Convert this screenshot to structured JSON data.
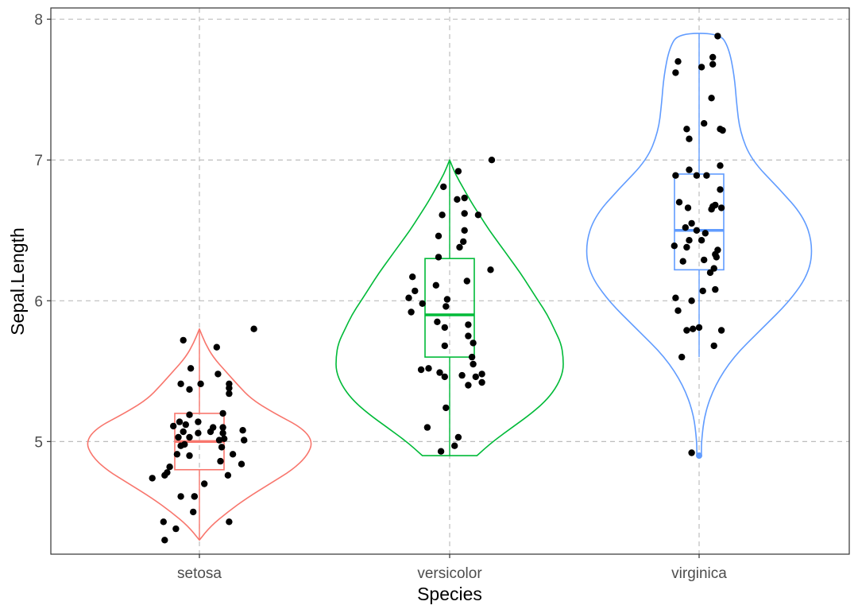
{
  "chart_data": {
    "type": "violin",
    "xlabel": "Species",
    "ylabel": "Sepal.Length",
    "categories": [
      "setosa",
      "versicolor",
      "virginica"
    ],
    "ylim": [
      4.2,
      8.08
    ],
    "yticks": [
      5,
      6,
      7,
      8
    ],
    "grid": true,
    "legend": "none",
    "colors": {
      "setosa": "#f8766d",
      "versicolor": "#00ba38",
      "virginica": "#619cff"
    },
    "series": [
      {
        "category": "setosa",
        "color": "#f8766d",
        "violin": {
          "y": [
            4.3,
            4.4,
            4.5,
            4.6,
            4.7,
            4.8,
            4.9,
            5.0,
            5.1,
            5.2,
            5.3,
            5.4,
            5.5,
            5.6,
            5.7,
            5.8
          ],
          "halfwidth": [
            0.0,
            0.1,
            0.25,
            0.42,
            0.62,
            0.82,
            0.95,
            1.0,
            0.9,
            0.66,
            0.46,
            0.34,
            0.23,
            0.12,
            0.05,
            0.0
          ]
        },
        "box": {
          "min": 4.3,
          "q1": 4.8,
          "median": 5.0,
          "q3": 5.2,
          "max": 5.8
        },
        "points": [
          [
            0.44,
            5.8
          ],
          [
            -0.13,
            5.72
          ],
          [
            -0.07,
            5.52
          ],
          [
            0.14,
            5.67
          ],
          [
            0.15,
            5.48
          ],
          [
            0.01,
            5.41
          ],
          [
            -0.15,
            5.41
          ],
          [
            0.24,
            5.41
          ],
          [
            0.24,
            5.38
          ],
          [
            -0.08,
            5.37
          ],
          [
            0.24,
            5.34
          ],
          [
            0.19,
            5.2
          ],
          [
            -0.08,
            5.19
          ],
          [
            -0.16,
            5.14
          ],
          [
            -0.01,
            5.14
          ],
          [
            -0.11,
            5.12
          ],
          [
            -0.21,
            5.11
          ],
          [
            0.11,
            5.1
          ],
          [
            0.19,
            5.1
          ],
          [
            0.35,
            5.08
          ],
          [
            -0.13,
            5.07
          ],
          [
            0.09,
            5.07
          ],
          [
            -0.01,
            5.06
          ],
          [
            0.19,
            5.06
          ],
          [
            -0.17,
            5.03
          ],
          [
            -0.08,
            5.03
          ],
          [
            0.2,
            5.02
          ],
          [
            0.16,
            5.01
          ],
          [
            0.36,
            5.01
          ],
          [
            -0.12,
            4.98
          ],
          [
            -0.15,
            4.97
          ],
          [
            0.18,
            4.96
          ],
          [
            0.27,
            4.91
          ],
          [
            -0.18,
            4.91
          ],
          [
            -0.08,
            4.9
          ],
          [
            0.17,
            4.86
          ],
          [
            0.34,
            4.84
          ],
          [
            -0.24,
            4.82
          ],
          [
            -0.26,
            4.78
          ],
          [
            -0.28,
            4.76
          ],
          [
            0.23,
            4.76
          ],
          [
            -0.38,
            4.74
          ],
          [
            0.04,
            4.7
          ],
          [
            -0.04,
            4.61
          ],
          [
            -0.04,
            4.61
          ],
          [
            -0.15,
            4.61
          ],
          [
            -0.05,
            4.5
          ],
          [
            -0.29,
            4.43
          ],
          [
            0.24,
            4.43
          ],
          [
            -0.19,
            4.38
          ],
          [
            -0.28,
            4.3
          ]
        ]
      },
      {
        "category": "versicolor",
        "color": "#00ba38",
        "violin": {
          "y": [
            4.9,
            5.0,
            5.1,
            5.2,
            5.3,
            5.4,
            5.5,
            5.6,
            5.7,
            5.8,
            5.9,
            6.0,
            6.1,
            6.2,
            6.3,
            6.4,
            6.5,
            6.6,
            6.7,
            6.8,
            6.9,
            7.0
          ],
          "halfwidth": [
            0.24,
            0.38,
            0.55,
            0.72,
            0.86,
            0.95,
            1.0,
            1.0,
            0.98,
            0.92,
            0.86,
            0.78,
            0.7,
            0.62,
            0.53,
            0.44,
            0.35,
            0.27,
            0.19,
            0.12,
            0.05,
            0.0
          ]
        },
        "box": {
          "min": 4.9,
          "q1": 5.6,
          "median": 5.9,
          "q3": 6.3,
          "max": 7.0
        },
        "points": [
          [
            0.34,
            7.0
          ],
          [
            0.07,
            6.92
          ],
          [
            -0.05,
            6.81
          ],
          [
            0.12,
            6.73
          ],
          [
            0.06,
            6.72
          ],
          [
            0.12,
            6.62
          ],
          [
            0.23,
            6.61
          ],
          [
            -0.06,
            6.61
          ],
          [
            0.12,
            6.5
          ],
          [
            -0.09,
            6.46
          ],
          [
            0.11,
            6.42
          ],
          [
            0.08,
            6.38
          ],
          [
            -0.09,
            6.31
          ],
          [
            0.33,
            6.22
          ],
          [
            -0.3,
            6.17
          ],
          [
            0.14,
            6.14
          ],
          [
            -0.11,
            6.11
          ],
          [
            -0.28,
            6.07
          ],
          [
            -0.33,
            6.02
          ],
          [
            -0.02,
            6.01
          ],
          [
            -0.22,
            5.98
          ],
          [
            -0.03,
            5.96
          ],
          [
            -0.31,
            5.92
          ],
          [
            -0.1,
            5.85
          ],
          [
            0.15,
            5.83
          ],
          [
            -0.04,
            5.81
          ],
          [
            0.15,
            5.75
          ],
          [
            0.19,
            5.7
          ],
          [
            -0.04,
            5.68
          ],
          [
            0.18,
            5.6
          ],
          [
            0.19,
            5.55
          ],
          [
            -0.17,
            5.52
          ],
          [
            -0.23,
            5.51
          ],
          [
            -0.08,
            5.49
          ],
          [
            0.26,
            5.48
          ],
          [
            0.1,
            5.47
          ],
          [
            0.21,
            5.46
          ],
          [
            -0.04,
            5.46
          ],
          [
            0.26,
            5.42
          ],
          [
            0.15,
            5.4
          ],
          [
            -0.03,
            5.24
          ],
          [
            -0.18,
            5.1
          ],
          [
            0.07,
            5.03
          ],
          [
            0.04,
            4.97
          ],
          [
            -0.07,
            4.93
          ]
        ]
      },
      {
        "category": "virginica",
        "color": "#619cff",
        "violin": {
          "y": [
            4.9,
            5.0,
            5.2,
            5.4,
            5.6,
            5.8,
            6.0,
            6.2,
            6.4,
            6.6,
            6.8,
            7.0,
            7.2,
            7.4,
            7.6,
            7.8,
            7.9
          ],
          "halfwidth": [
            0.02,
            0.02,
            0.05,
            0.14,
            0.3,
            0.55,
            0.8,
            0.97,
            1.0,
            0.92,
            0.7,
            0.46,
            0.36,
            0.33,
            0.31,
            0.26,
            0.18
          ]
        },
        "box": {
          "min": 5.6,
          "q1": 6.22,
          "median": 6.5,
          "q3": 6.9,
          "max": 7.9,
          "outliers": [
            4.9
          ]
        },
        "points": [
          [
            0.15,
            7.88
          ],
          [
            -0.17,
            7.7
          ],
          [
            0.11,
            7.73
          ],
          [
            0.11,
            7.68
          ],
          [
            0.02,
            7.66
          ],
          [
            -0.19,
            7.62
          ],
          [
            0.1,
            7.44
          ],
          [
            0.04,
            7.26
          ],
          [
            -0.1,
            7.22
          ],
          [
            0.17,
            7.22
          ],
          [
            0.19,
            7.21
          ],
          [
            -0.08,
            7.15
          ],
          [
            0.17,
            6.96
          ],
          [
            -0.08,
            6.93
          ],
          [
            -0.19,
            6.89
          ],
          [
            0.06,
            6.89
          ],
          [
            -0.02,
            6.89
          ],
          [
            0.17,
            6.79
          ],
          [
            -0.16,
            6.7
          ],
          [
            0.13,
            6.68
          ],
          [
            -0.09,
            6.66
          ],
          [
            0.11,
            6.67
          ],
          [
            0.18,
            6.66
          ],
          [
            0.1,
            6.65
          ],
          [
            -0.06,
            6.55
          ],
          [
            -0.11,
            6.52
          ],
          [
            -0.02,
            6.5
          ],
          [
            0.05,
            6.48
          ],
          [
            0.02,
            6.43
          ],
          [
            -0.08,
            6.43
          ],
          [
            -0.2,
            6.39
          ],
          [
            -0.1,
            6.38
          ],
          [
            0.15,
            6.36
          ],
          [
            0.13,
            6.33
          ],
          [
            -0.13,
            6.28
          ],
          [
            0.14,
            6.31
          ],
          [
            0.04,
            6.29
          ],
          [
            0.09,
            6.2
          ],
          [
            0.13,
            6.08
          ],
          [
            0.12,
            6.23
          ],
          [
            -0.19,
            6.02
          ],
          [
            0.03,
            6.07
          ],
          [
            -0.06,
            6.0
          ],
          [
            -0.17,
            5.93
          ],
          [
            0.12,
            5.68
          ],
          [
            -0.05,
            5.8
          ],
          [
            0.0,
            5.81
          ],
          [
            -0.1,
            5.79
          ],
          [
            0.18,
            5.79
          ],
          [
            -0.14,
            5.6
          ],
          [
            -0.06,
            4.92
          ]
        ]
      }
    ]
  }
}
